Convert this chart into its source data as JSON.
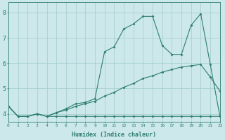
{
  "xlabel": "Humidex (Indice chaleur)",
  "bg_color": "#cce8ea",
  "grid_color": "#aacfd2",
  "line_color": "#2e7d70",
  "xlim": [
    0,
    22
  ],
  "ylim": [
    3.7,
    8.4
  ],
  "yticks": [
    4,
    5,
    6,
    7,
    8
  ],
  "xticks": [
    0,
    1,
    2,
    3,
    4,
    5,
    6,
    7,
    8,
    9,
    10,
    11,
    12,
    13,
    14,
    15,
    16,
    17,
    18,
    19,
    20,
    21,
    22
  ],
  "line1_x": [
    0,
    1,
    2,
    3,
    4,
    5,
    6,
    7,
    8,
    9,
    10,
    11,
    12,
    13,
    14,
    15,
    16,
    17,
    18,
    19,
    20,
    21,
    22
  ],
  "line1_y": [
    4.3,
    3.9,
    3.9,
    4.0,
    3.9,
    3.9,
    3.9,
    3.9,
    3.9,
    3.9,
    3.9,
    3.9,
    3.9,
    3.9,
    3.9,
    3.9,
    3.9,
    3.9,
    3.9,
    3.9,
    3.9,
    3.9,
    3.9
  ],
  "line2_x": [
    0,
    1,
    2,
    3,
    4,
    5,
    6,
    7,
    8,
    9,
    10,
    11,
    12,
    13,
    14,
    15,
    16,
    17,
    18,
    19,
    20,
    21,
    22
  ],
  "line2_y": [
    4.3,
    3.9,
    3.9,
    4.0,
    3.9,
    4.05,
    4.15,
    4.3,
    4.4,
    4.5,
    4.7,
    4.85,
    5.05,
    5.2,
    5.4,
    5.5,
    5.65,
    5.75,
    5.85,
    5.9,
    5.95,
    5.45,
    4.9
  ],
  "line3_x": [
    0,
    1,
    2,
    3,
    4,
    5,
    6,
    7,
    8,
    9,
    10,
    11,
    12,
    13,
    14,
    15,
    16,
    17,
    18,
    19,
    20,
    21,
    22
  ],
  "line3_y": [
    4.3,
    3.9,
    3.9,
    4.0,
    3.9,
    4.05,
    4.2,
    4.4,
    4.45,
    4.6,
    6.45,
    6.65,
    7.35,
    7.55,
    7.85,
    7.85,
    6.7,
    6.35,
    6.35,
    7.5,
    7.95,
    5.95,
    3.9
  ]
}
